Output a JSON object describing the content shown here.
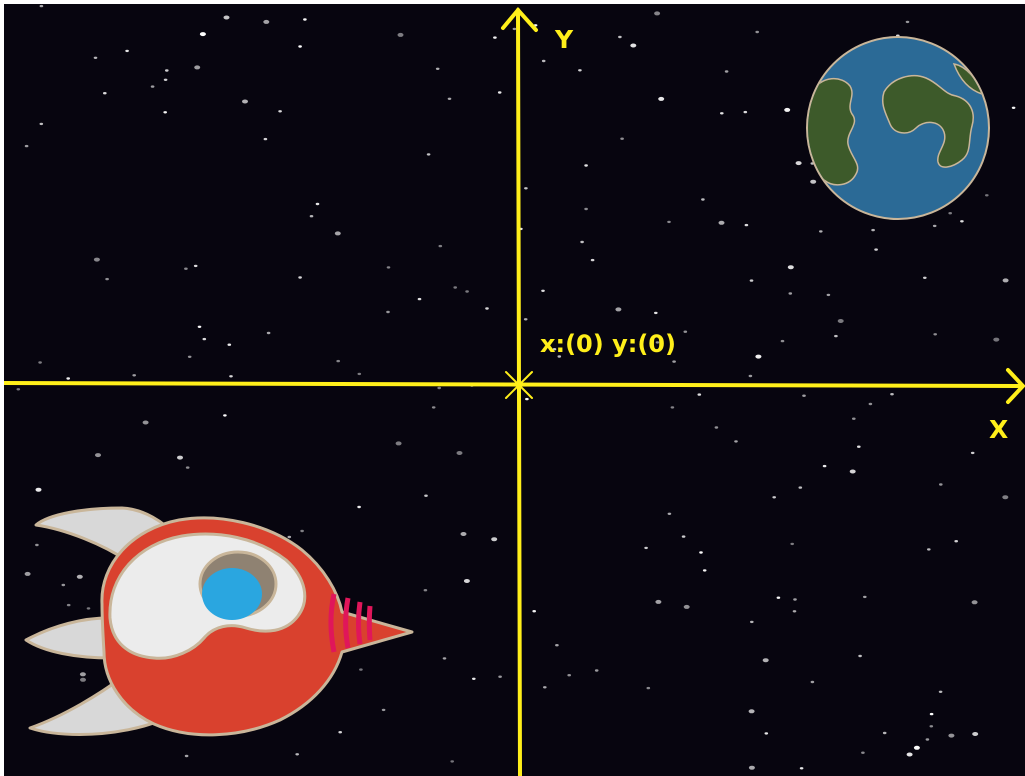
{
  "axes": {
    "x_label": "X",
    "y_label": "Y",
    "origin_readout": "x:(0) y:(0)",
    "color": "#ffef1a"
  },
  "scene": {
    "background_color": "#07050f",
    "planet": "earth-planet",
    "sprite": "rocket-sprite",
    "planet_ocean_color": "#2b6a96",
    "planet_land_color": "#3d5a2a",
    "rocket_body_color": "#d9412e",
    "rocket_window_color": "#2aa6e0",
    "rocket_fin_color": "#d8d8d8"
  }
}
